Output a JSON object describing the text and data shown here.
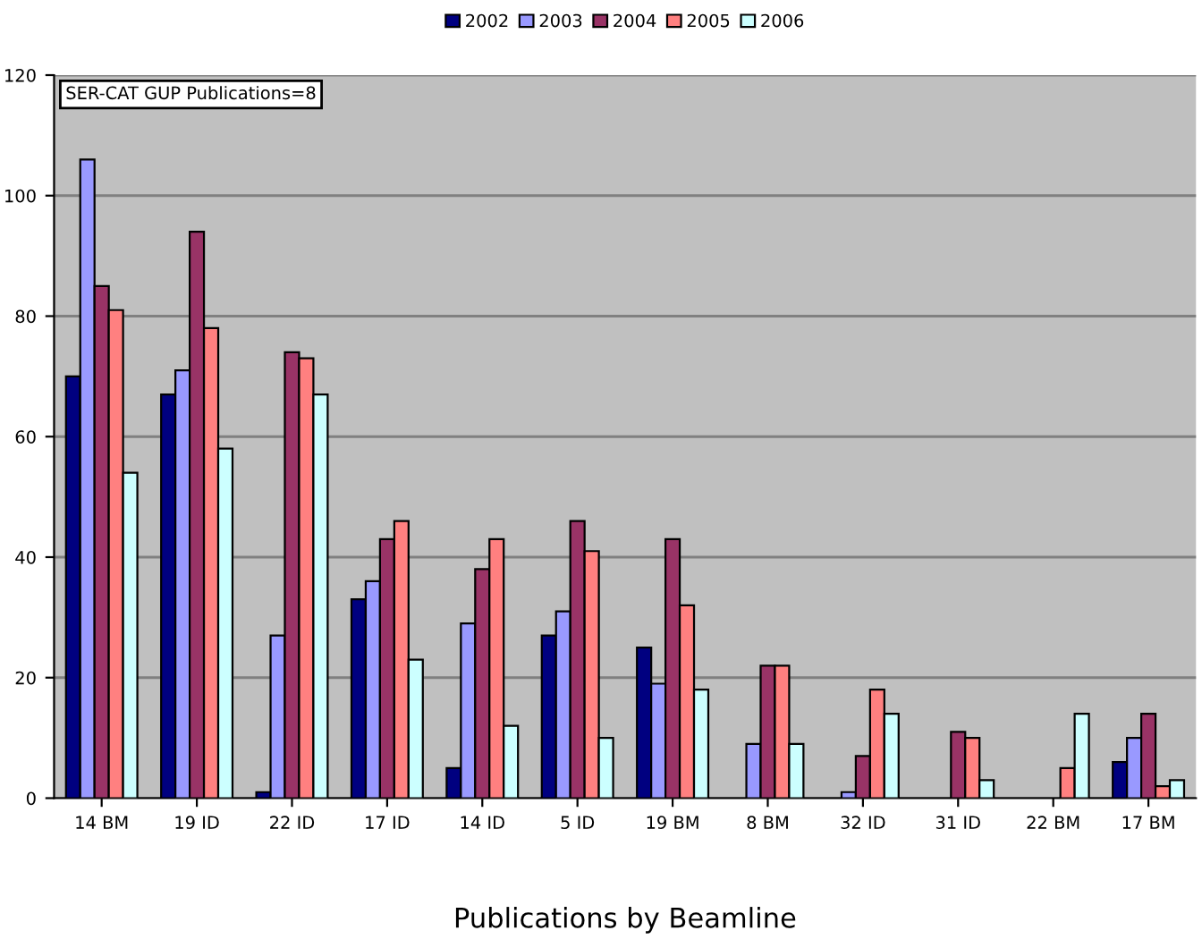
{
  "chart_data": {
    "type": "bar",
    "xlabel": "Publications by Beamline",
    "annotations": [
      "SER-CAT GUP Publications=8"
    ],
    "categories": [
      "14 BM",
      "19 ID",
      "22 ID",
      "17 ID",
      "14 ID",
      "5 ID",
      "19 BM",
      "8 BM",
      "32 ID",
      "31 ID",
      "22 BM",
      "17 BM"
    ],
    "series": [
      {
        "name": "2002",
        "color": "#000080",
        "values": [
          70,
          67,
          1,
          33,
          5,
          27,
          25,
          null,
          null,
          null,
          null,
          6
        ]
      },
      {
        "name": "2003",
        "color": "#9999ff",
        "values": [
          106,
          71,
          27,
          36,
          29,
          31,
          19,
          9,
          1,
          null,
          null,
          10
        ]
      },
      {
        "name": "2004",
        "color": "#993366",
        "values": [
          85,
          94,
          74,
          43,
          38,
          46,
          43,
          22,
          7,
          11,
          null,
          14
        ]
      },
      {
        "name": "2005",
        "color": "#ff8080",
        "values": [
          81,
          78,
          73,
          46,
          43,
          41,
          32,
          22,
          18,
          10,
          5,
          2
        ]
      },
      {
        "name": "2006",
        "color": "#ccffff",
        "values": [
          54,
          58,
          67,
          23,
          12,
          10,
          18,
          9,
          14,
          3,
          14,
          3
        ]
      }
    ],
    "ylim": [
      0,
      120
    ],
    "yticks": [
      0,
      20,
      40,
      60,
      80,
      100,
      120
    ],
    "grid": "y",
    "legend": "top"
  }
}
